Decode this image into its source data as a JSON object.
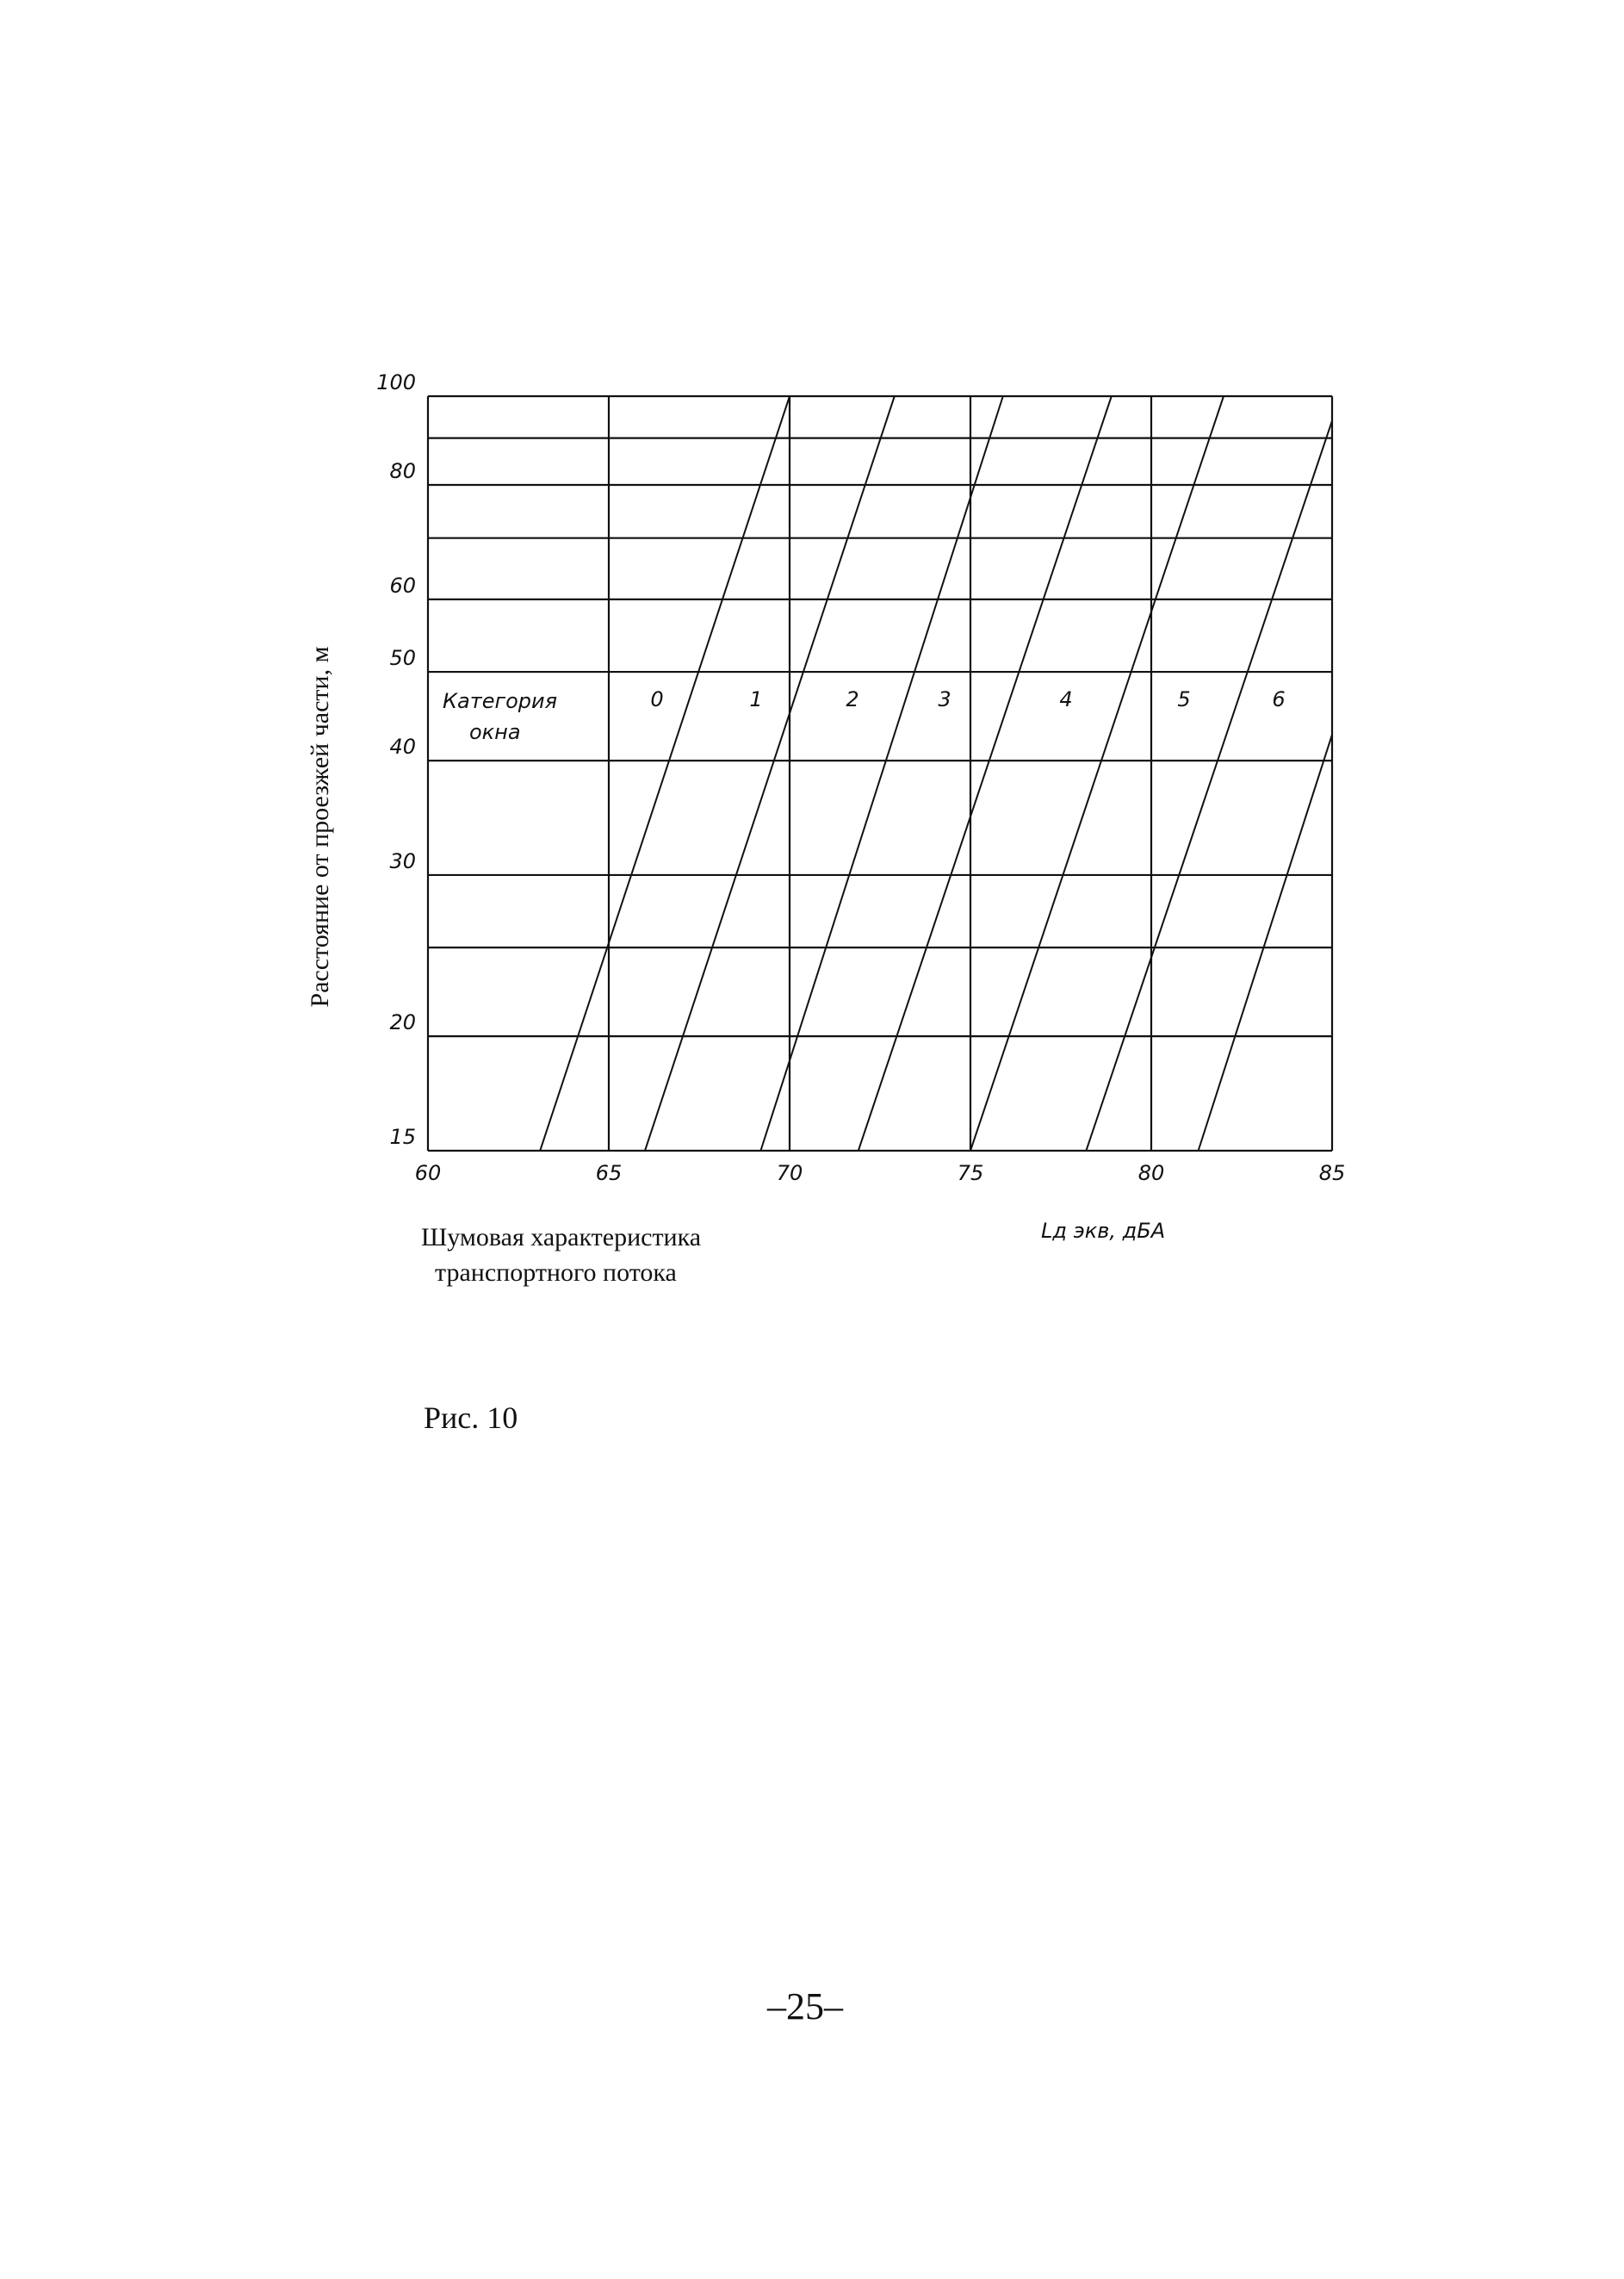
{
  "chart_data": {
    "type": "line",
    "y_label": "Расстояние от проезжей части, м",
    "x_label_line1": "Шумовая характеристика",
    "x_label_line2": "транспортного потока",
    "unit_label": "Lд экв, дБА",
    "annotation_line1": "Категория",
    "annotation_line2": "окна",
    "xlim": [
      60,
      85
    ],
    "xticks": [
      60,
      65,
      70,
      75,
      80,
      85
    ],
    "ylim": [
      15,
      100
    ],
    "yticks": [
      15,
      20,
      30,
      40,
      50,
      60,
      80,
      100
    ],
    "minor_yticks": [
      25,
      70,
      90
    ],
    "log_y": true,
    "grid": true,
    "series": [
      {
        "name": "0",
        "color": "#111111",
        "x": [
          63.1,
          70
        ],
        "values": [
          15,
          100
        ]
      },
      {
        "name": "1",
        "color": "#111111",
        "x": [
          66,
          72.9
        ],
        "values": [
          15,
          100
        ]
      },
      {
        "name": "2",
        "color": "#111111",
        "x": [
          69.2,
          75.9
        ],
        "values": [
          15,
          100
        ]
      },
      {
        "name": "3",
        "color": "#111111",
        "x": [
          71.9,
          78.9
        ],
        "values": [
          15,
          100
        ]
      },
      {
        "name": "4",
        "color": "#111111",
        "x": [
          75,
          82
        ],
        "values": [
          15,
          100
        ]
      },
      {
        "name": "5",
        "color": "#111111",
        "x": [
          78.2,
          85
        ],
        "values": [
          15,
          94
        ]
      },
      {
        "name": "6",
        "color": "#111111",
        "x": [
          81.3,
          85
        ],
        "values": [
          15,
          42.7
        ]
      }
    ]
  },
  "figure_caption": "Рис. 10",
  "page_number": "–25–"
}
